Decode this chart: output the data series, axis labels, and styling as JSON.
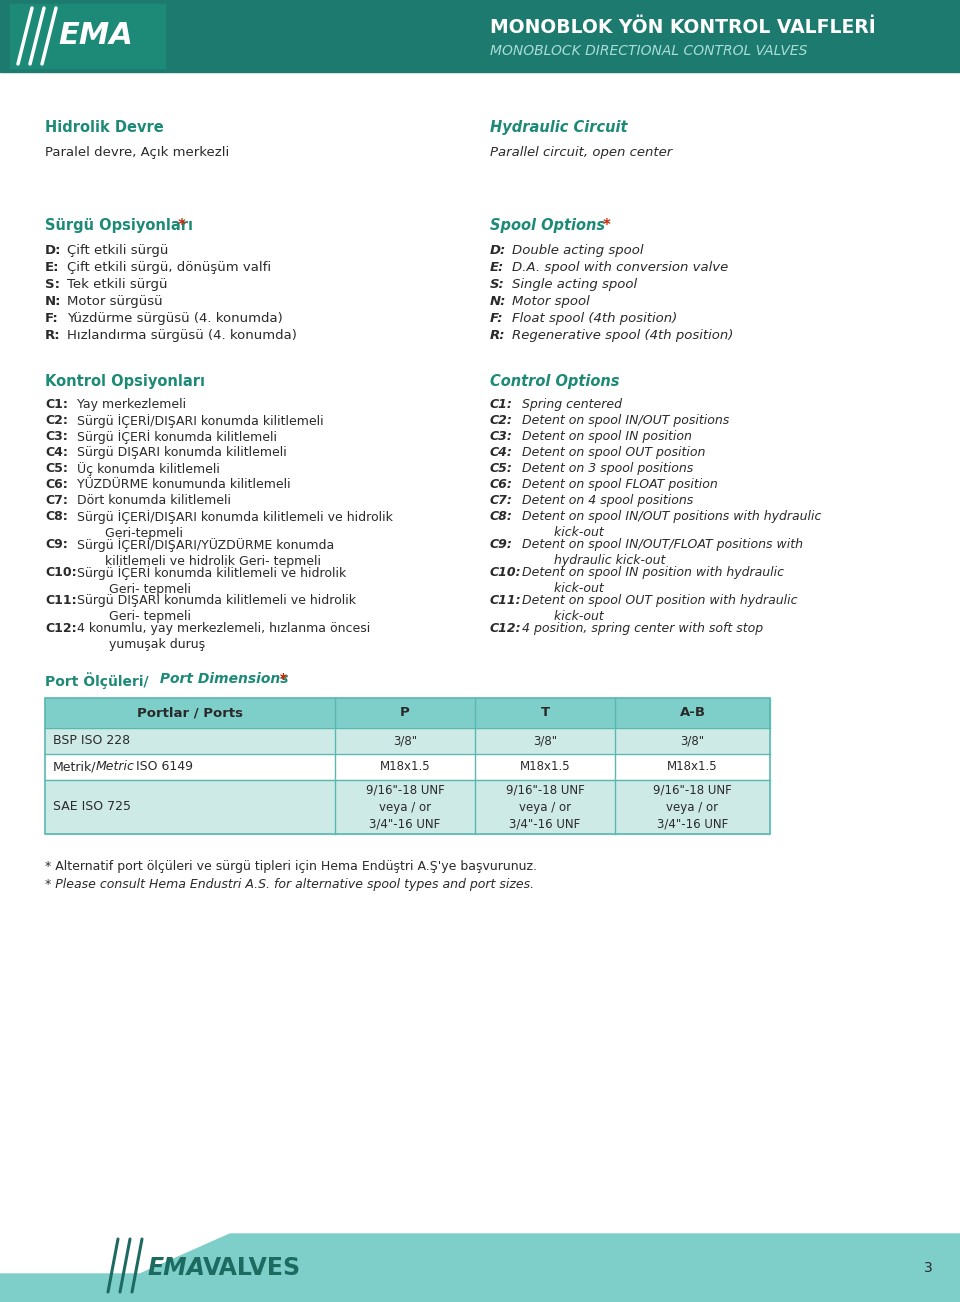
{
  "header_bg_color": "#1d7a6e",
  "teal_color": "#1d8a78",
  "red_star_color": "#cc2200",
  "dark_text": "#2a2a2a",
  "white": "#ffffff",
  "table_header_bg": "#7ececa",
  "table_row1_bg": "#cdeae7",
  "table_row2_bg": "#ffffff",
  "table_row3_bg": "#cdeae7",
  "table_border": "#5ab8b0",
  "footer_teal": "#7ececa",
  "footer_dark": "#1d6a60",
  "header_title_tr": "MONOBLOK YÖN KONTROL VALFLERİ",
  "header_title_en": "MONOBLOCK DIRECTIONAL CONTROL VALVES",
  "section1_tr_title": "Hidrolik Devre",
  "section1_en_title": "Hydraulic Circuit",
  "section1_tr_body": "Paralel devre, Açık merkezli",
  "section1_en_body": "Parallel circuit, open center",
  "section2_tr_title": "Sürgü Opsiyonları",
  "section2_en_title": "Spool Options",
  "spool_tr": [
    [
      "D",
      "Çift etkili sürgü"
    ],
    [
      "E",
      "Çift etkili sürgü, dönüşüm valfi"
    ],
    [
      "S",
      "Tek etkili sürgü"
    ],
    [
      "N",
      "Motor sürgüsü"
    ],
    [
      "F",
      "Yüzdürme sürgüsü (4. konumda)"
    ],
    [
      "R",
      "Hızlandırma sürgüsü (4. konumda)"
    ]
  ],
  "spool_en": [
    [
      "D",
      "Double acting spool"
    ],
    [
      "E",
      "D.A. spool with conversion valve"
    ],
    [
      "S",
      "Single acting spool"
    ],
    [
      "N",
      "Motor spool"
    ],
    [
      "F",
      "Float spool (4th position)"
    ],
    [
      "R",
      "Regenerative spool (4th position)"
    ]
  ],
  "section3_tr_title": "Kontrol Opsiyonları",
  "section3_en_title": "Control Options",
  "control_tr": [
    [
      "C1:",
      "  Yay merkezlemeli"
    ],
    [
      "C2:",
      "  Sürgü İÇERİ/DIŞARI konumda kilitlemeli"
    ],
    [
      "C3:",
      "  Sürgü İÇERİ konumda kilitlemeli"
    ],
    [
      "C4:",
      "  Sürgü DIŞARI konumda kilitlemeli"
    ],
    [
      "C5:",
      "  Üç konumda kilitlemeli"
    ],
    [
      "C6:",
      "  YÜZDÜRME konumunda kilitlemeli"
    ],
    [
      "C7:",
      "  Dört konumda kilitlemeli"
    ],
    [
      "C8:",
      "  Sürgü İÇERİ/DIŞARI konumda kilitlemeli ve hidrolik\n       Geri-tepmeli"
    ],
    [
      "C9:",
      "  Sürgü İÇERİ/DIŞARI/YÜZDÜRME konumda\n       kilitlemeli ve hidrolik Geri- tepmeli"
    ],
    [
      "C10:",
      "  Sürgü İÇERİ konumda kilitlemeli ve hidrolik\n        Geri- tepmeli"
    ],
    [
      "C11:",
      "  Sürgü DIŞARI konumda kilitlemeli ve hidrolik\n        Geri- tepmeli"
    ],
    [
      "C12:",
      "  4 konumlu, yay merkezlemeli, hızlanma öncesi\n        yumuşak duruş"
    ]
  ],
  "control_en": [
    [
      "C1:",
      "  Spring centered"
    ],
    [
      "C2:",
      "  Detent on spool IN/OUT positions"
    ],
    [
      "C3:",
      "  Detent on spool IN position"
    ],
    [
      "C4:",
      "  Detent on spool OUT position"
    ],
    [
      "C5:",
      "  Detent on 3 spool positions"
    ],
    [
      "C6:",
      "  Detent on spool FLOAT position"
    ],
    [
      "C7:",
      "  Detent on 4 spool positions"
    ],
    [
      "C8:",
      "  Detent on spool IN/OUT positions with hydraulic\n        kick-out"
    ],
    [
      "C9:",
      "  Detent on spool IN/OUT/FLOAT positions with\n        hydraulic kick-out"
    ],
    [
      "C10:",
      "  Detent on spool IN position with hydraulic\n        kick-out"
    ],
    [
      "C11:",
      "  Detent on spool OUT position with hydraulic\n        kick-out"
    ],
    [
      "C12:",
      "  4 position, spring center with soft stop"
    ]
  ],
  "port_section_tr": "Port Ölçüleri/",
  "port_section_en": " Port Dimensions",
  "table_header": [
    "Portlar / Ports",
    "P",
    "T",
    "A-B"
  ],
  "table_rows": [
    [
      "BSP ISO 228",
      "3/8\"",
      "3/8\"",
      "3/8\""
    ],
    [
      "Metrik/Metric ISO 6149",
      "M18x1.5",
      "M18x1.5",
      "M18x1.5"
    ],
    [
      "SAE ISO 725",
      "9/16\"-18 UNF\nveya / or\n3/4\"-16 UNF",
      "9/16\"-18 UNF\nveya / or\n3/4\"-16 UNF",
      "9/16\"-18 UNF\nveya / or\n3/4\"-16 UNF"
    ]
  ],
  "footer_note_tr": "* Alternatif port ölçüleri ve sürgü tipleri için Hema Endüştri A.Ş'ye başvurunuz.",
  "footer_note_en": "* Please consult Hema Endustri A.S. for alternative spool types and port sizes.",
  "page_number": "3"
}
